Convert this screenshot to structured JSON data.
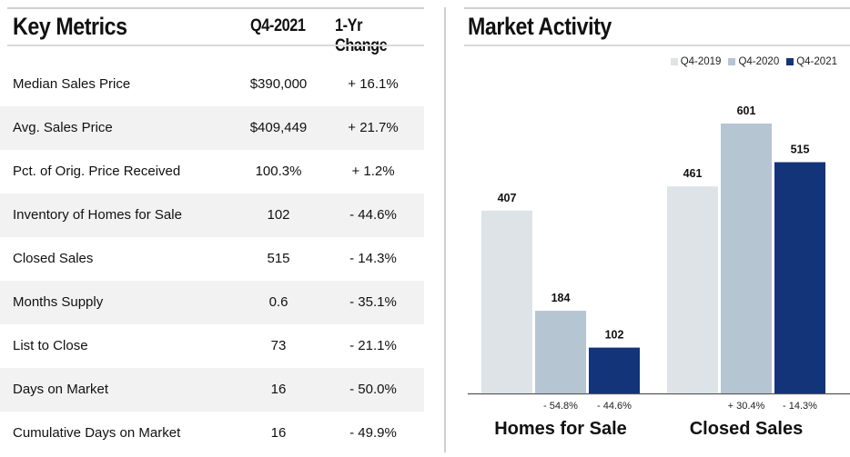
{
  "left_panel": {
    "title": "Key Metrics",
    "col1_header": "Q4-2021",
    "col2_header": "1-Yr Change",
    "rows": [
      {
        "label": "Median Sales Price",
        "value": "$390,000",
        "change": "+ 16.1%"
      },
      {
        "label": "Avg. Sales Price",
        "value": "$409,449",
        "change": "+ 21.7%"
      },
      {
        "label": "Pct. of Orig. Price Received",
        "value": "100.3%",
        "change": "+ 1.2%"
      },
      {
        "label": "Inventory of Homes for Sale",
        "value": "102",
        "change": "- 44.6%"
      },
      {
        "label": "Closed Sales",
        "value": "515",
        "change": "- 14.3%"
      },
      {
        "label": "Months Supply",
        "value": "0.6",
        "change": "- 35.1%"
      },
      {
        "label": "List to Close",
        "value": "73",
        "change": "- 21.1%"
      },
      {
        "label": "Days on Market",
        "value": "16",
        "change": "- 50.0%"
      },
      {
        "label": "Cumulative Days on Market",
        "value": "16",
        "change": "- 49.9%"
      }
    ]
  },
  "right_panel": {
    "title": "Market Activity"
  },
  "chart_data": {
    "type": "bar",
    "categories": [
      "Homes for Sale",
      "Closed Sales"
    ],
    "series": [
      {
        "name": "Q4-2019",
        "values": [
          407,
          461
        ],
        "color": "#dde3e6"
      },
      {
        "name": "Q4-2020",
        "values": [
          184,
          601
        ],
        "color": "#b6c5d2"
      },
      {
        "name": "Q4-2021",
        "values": [
          102,
          515
        ],
        "color": "#14347a"
      }
    ],
    "change_labels": [
      [
        "- 54.8%",
        "- 44.6%"
      ],
      [
        "+ 30.4%",
        "- 14.3%"
      ]
    ],
    "legend_position": "top-right",
    "grid": false,
    "ylim": [
      0,
      601
    ]
  }
}
